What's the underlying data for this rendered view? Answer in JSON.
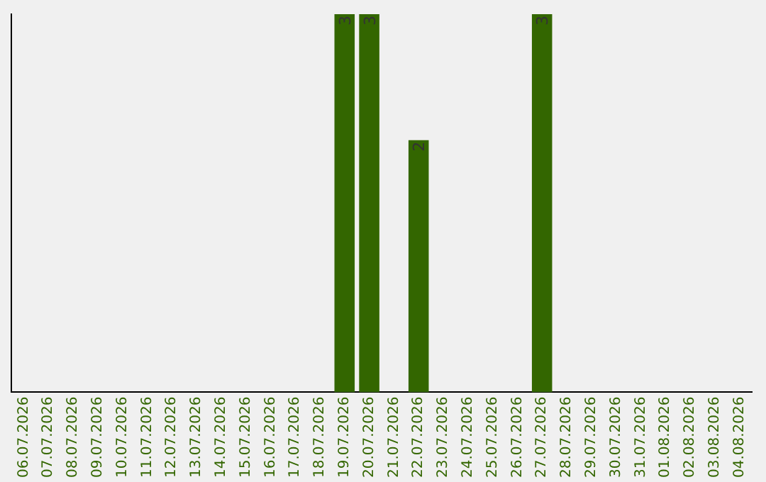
{
  "chart_data": {
    "type": "bar",
    "categories": [
      "06.07.2026",
      "07.07.2026",
      "08.07.2026",
      "09.07.2026",
      "10.07.2026",
      "11.07.2026",
      "12.07.2026",
      "13.07.2026",
      "14.07.2026",
      "15.07.2026",
      "16.07.2026",
      "17.07.2026",
      "18.07.2026",
      "19.07.2026",
      "20.07.2026",
      "21.07.2026",
      "22.07.2026",
      "23.07.2026",
      "24.07.2026",
      "25.07.2026",
      "26.07.2026",
      "27.07.2026",
      "28.07.2026",
      "29.07.2026",
      "30.07.2026",
      "31.07.2026",
      "01.08.2026",
      "02.08.2026",
      "03.08.2026",
      "04.08.2026"
    ],
    "values": [
      null,
      null,
      null,
      null,
      null,
      null,
      null,
      null,
      null,
      null,
      null,
      null,
      null,
      3,
      3,
      null,
      2,
      null,
      null,
      null,
      null,
      3,
      null,
      null,
      null,
      null,
      null,
      null,
      null,
      null
    ],
    "value_labels": [
      null,
      null,
      null,
      null,
      null,
      null,
      null,
      null,
      null,
      null,
      null,
      null,
      null,
      "3",
      "3",
      null,
      "2",
      null,
      null,
      null,
      null,
      "3",
      null,
      null,
      null,
      null,
      null,
      null,
      null,
      null
    ],
    "color": "#336600",
    "ylim": [
      0,
      3
    ],
    "grid": false,
    "legend": false,
    "tick_labels": "x"
  }
}
